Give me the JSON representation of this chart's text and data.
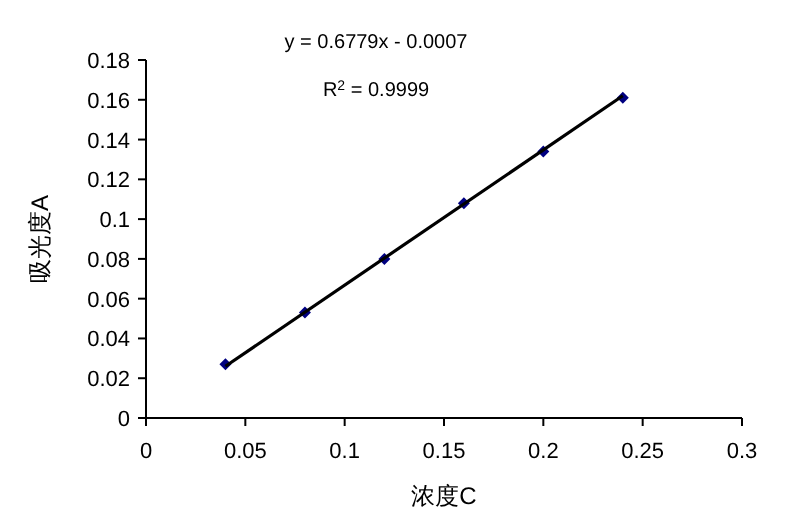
{
  "chart_data": {
    "type": "scatter",
    "xlabel": "浓度C",
    "ylabel": "吸光度A",
    "annotations": [
      "y = 0.6779x - 0.0007",
      "R$^{2}$ = 0.9999"
    ],
    "xlim": [
      0,
      0.3
    ],
    "xticks": [
      0,
      0.05,
      0.1,
      0.15,
      0.2,
      0.25,
      0.3
    ],
    "ylim": [
      0,
      0.18
    ],
    "yticks": [
      0,
      0.02,
      0.04,
      0.06,
      0.08,
      0.1,
      0.12,
      0.14,
      0.16,
      0.18
    ],
    "grid": false,
    "series": [
      {
        "color": "#000080",
        "marker": "diamond",
        "x": [
          0.04,
          0.08,
          0.12,
          0.16,
          0.2,
          0.24
        ],
        "values": [
          0.027,
          0.053,
          0.08,
          0.108,
          0.134,
          0.161
        ]
      },
      {
        "type": "line",
        "color": "#000000",
        "marker": "none",
        "x": [
          0.04,
          0.24
        ],
        "values": [
          0.026,
          0.162
        ]
      }
    ]
  }
}
